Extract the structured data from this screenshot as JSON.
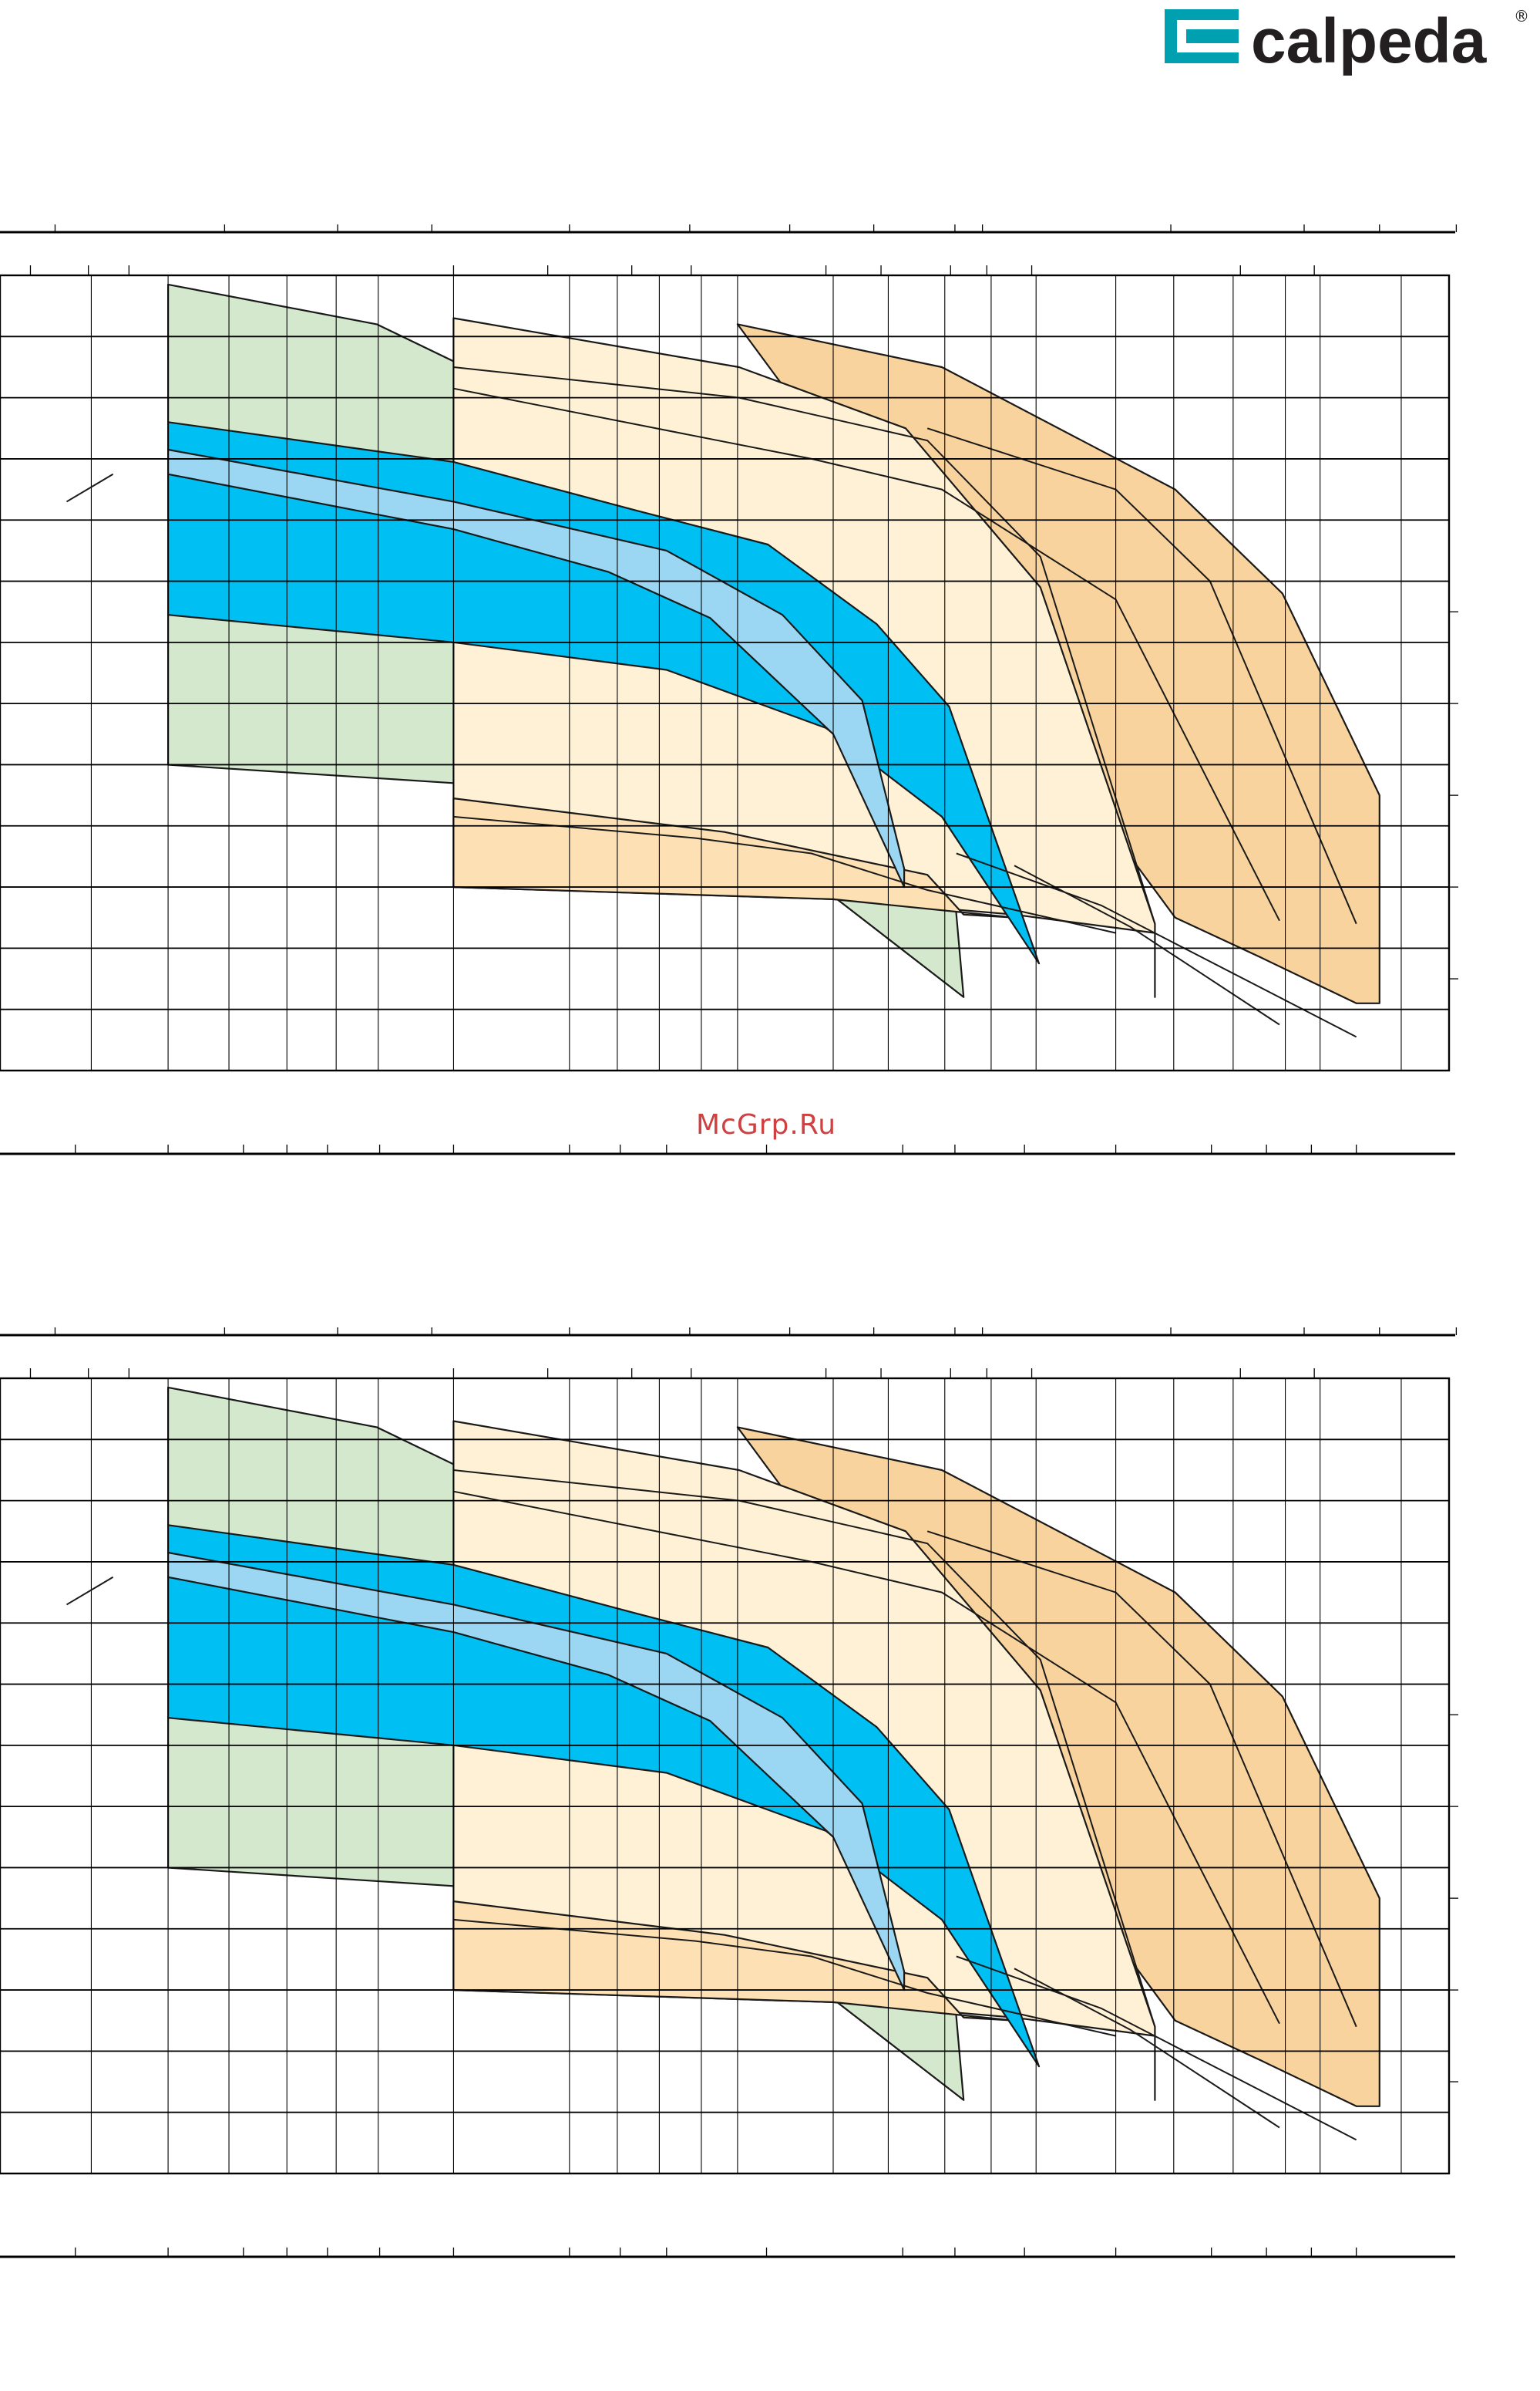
{
  "brand": {
    "name": "calpeda",
    "mark": "®",
    "color_square": "#00a0b0",
    "color_text": "#231f20"
  },
  "watermark": {
    "text": "McGrp.Ru",
    "color": "#d04040"
  },
  "colors": {
    "green": "#d3e8cc",
    "cream": "#fef1d6",
    "peach": "#fde1b5",
    "orange": "#f9d39d",
    "cyan": "#00bff2",
    "light_blue": "#9bd7f3"
  },
  "chart_data": [
    {
      "type": "area",
      "title": "",
      "xlabel": "",
      "ylabel": "",
      "x_axis": "flow rate Q (scale labels not printed)",
      "y_axis": "head H (scale labels not printed)",
      "xlim": [
        0,
        1000
      ],
      "ylim": [
        0,
        13
      ],
      "grid": true,
      "vertical_gridlines": [
        63,
        116,
        158,
        198,
        232,
        261,
        313,
        393,
        426,
        455,
        484,
        509,
        575,
        613,
        652,
        684,
        715,
        770,
        810,
        851,
        887,
        911,
        967
      ],
      "top_scale_ticks": [
        38,
        155,
        233,
        298,
        393,
        476,
        545,
        603,
        659,
        678,
        808,
        900,
        952,
        1005
      ],
      "secondary_scale_ticks": [
        21,
        61,
        89,
        313,
        378,
        436,
        477,
        570,
        608,
        656,
        681,
        712,
        856,
        907
      ],
      "right_scale_ticks": [
        7.5,
        6.0,
        4.5,
        3.0,
        1.5
      ],
      "bottom_scale_ticks": [
        52,
        116,
        168,
        198,
        226,
        262,
        313,
        393,
        428,
        460,
        529,
        623,
        659,
        707,
        770,
        836,
        874,
        905,
        936
      ],
      "series": [
        {
          "fill": "green",
          "upper": [
            [
              116,
              12.85
            ],
            [
              260,
              12.2
            ],
            [
              400,
              10.6
            ],
            [
              517,
              8.9
            ]
          ],
          "lower": [
            [
              116,
              5.0
            ],
            [
              313,
              4.7
            ],
            [
              460,
              4.0
            ],
            [
              575,
              2.85
            ],
            [
              665,
              1.2
            ]
          ],
          "right_edge": [
            [
              657,
              3.35
            ],
            [
              665,
              1.2
            ]
          ],
          "inner_upper": [
            [
              517,
              8.9
            ],
            [
              595,
              6.8
            ],
            [
              657,
              3.35
            ]
          ]
        },
        {
          "fill": "orange",
          "upper": [
            [
              509,
              12.2
            ],
            [
              650,
              11.5
            ],
            [
              811,
              9.5
            ],
            [
              885,
              7.8
            ],
            [
              952,
              4.5
            ]
          ],
          "lower": [
            [
              811,
              2.5
            ],
            [
              870,
              1.85
            ],
            [
              936,
              1.1
            ]
          ],
          "right_edge": [
            [
              952,
              4.5
            ],
            [
              952,
              1.1
            ]
          ]
        },
        {
          "fill": "cream",
          "upper": [
            [
              313,
              12.3
            ],
            [
              510,
              11.5
            ],
            [
              625,
              10.5
            ],
            [
              718,
              7.9
            ],
            [
              797,
              2.4
            ]
          ],
          "lower": [
            [
              313,
              3.0
            ],
            [
              575,
              2.8
            ],
            [
              700,
              2.55
            ],
            [
              797,
              2.25
            ]
          ],
          "right_edge": [
            [
              797,
              2.4
            ],
            [
              797,
              1.2
            ]
          ]
        },
        {
          "fill": "peach",
          "upper": [
            [
              313,
              4.45
            ],
            [
              500,
              3.9
            ],
            [
              640,
              3.2
            ]
          ],
          "lower": [
            [
              313,
              3.0
            ],
            [
              575,
              2.8
            ],
            [
              700,
              2.5
            ]
          ],
          "right_edge": [
            [
              640,
              3.2
            ],
            [
              665,
              2.55
            ]
          ]
        },
        {
          "fill": "cyan",
          "upper": [
            [
              116,
              10.6
            ],
            [
              313,
              9.95
            ],
            [
              440,
              9.15
            ],
            [
              530,
              8.6
            ],
            [
              605,
              7.3
            ],
            [
              655,
              5.95
            ],
            [
              717,
              1.75
            ]
          ],
          "lower": [
            [
              116,
              7.45
            ],
            [
              313,
              7.0
            ],
            [
              460,
              6.55
            ],
            [
              570,
              5.6
            ],
            [
              650,
              4.15
            ],
            [
              717,
              1.75
            ]
          ]
        },
        {
          "fill": "light_blue",
          "upper": [
            [
              116,
              10.15
            ],
            [
              313,
              9.3
            ],
            [
              460,
              8.5
            ],
            [
              540,
              7.45
            ],
            [
              595,
              6.05
            ],
            [
              624,
              3.3
            ]
          ],
          "lower": [
            [
              116,
              9.75
            ],
            [
              313,
              8.85
            ],
            [
              420,
              8.15
            ],
            [
              490,
              7.4
            ],
            [
              575,
              5.5
            ],
            [
              624,
              3.0
            ]
          ]
        }
      ],
      "curves": [
        [
          [
            313,
            11.5
          ],
          [
            510,
            11.0
          ],
          [
            640,
            10.3
          ],
          [
            718,
            8.4
          ],
          [
            797,
            2.4
          ]
        ],
        [
          [
            313,
            11.15
          ],
          [
            560,
            10.0
          ],
          [
            650,
            9.5
          ],
          [
            770,
            7.7
          ],
          [
            883,
            2.45
          ]
        ],
        [
          [
            640,
            10.5
          ],
          [
            770,
            9.5
          ],
          [
            835,
            8.0
          ],
          [
            936,
            2.4
          ]
        ],
        [
          [
            313,
            4.15
          ],
          [
            480,
            3.8
          ],
          [
            560,
            3.55
          ],
          [
            640,
            2.95
          ],
          [
            770,
            2.25
          ]
        ],
        [
          [
            700,
            3.35
          ],
          [
            780,
            2.35
          ],
          [
            883,
            0.75
          ]
        ],
        [
          [
            660,
            3.55
          ],
          [
            760,
            2.7
          ],
          [
            936,
            0.55
          ]
        ]
      ]
    },
    {
      "type": "area",
      "title": "",
      "xlabel": "",
      "ylabel": "",
      "x_axis": "flow rate Q (scale labels not printed)",
      "y_axis": "head H (scale labels not printed)",
      "xlim": [
        0,
        1000
      ],
      "ylim": [
        0,
        13
      ],
      "grid": true,
      "vertical_gridlines": [
        63,
        116,
        158,
        198,
        232,
        261,
        313,
        393,
        426,
        455,
        484,
        509,
        575,
        613,
        652,
        684,
        715,
        770,
        810,
        851,
        887,
        911,
        967
      ],
      "top_scale_ticks": [
        38,
        155,
        233,
        298,
        393,
        476,
        545,
        603,
        659,
        678,
        808,
        900,
        952,
        1005
      ],
      "secondary_scale_ticks": [
        21,
        61,
        89,
        313,
        378,
        436,
        477,
        570,
        608,
        656,
        681,
        712,
        856,
        907
      ],
      "right_scale_ticks": [
        7.5,
        6.0,
        4.5,
        3.0,
        1.5
      ],
      "bottom_scale_ticks": [
        52,
        116,
        168,
        198,
        226,
        262,
        313,
        393,
        428,
        460,
        529,
        623,
        659,
        707,
        770,
        836,
        874,
        905,
        936
      ],
      "series": [
        {
          "fill": "green",
          "upper": [
            [
              116,
              12.85
            ],
            [
              260,
              12.2
            ],
            [
              400,
              10.6
            ],
            [
              517,
              8.9
            ]
          ],
          "lower": [
            [
              116,
              5.0
            ],
            [
              313,
              4.7
            ],
            [
              460,
              4.0
            ],
            [
              575,
              2.85
            ],
            [
              665,
              1.2
            ]
          ],
          "right_edge": [
            [
              657,
              3.35
            ],
            [
              665,
              1.2
            ]
          ],
          "inner_upper": [
            [
              517,
              8.9
            ],
            [
              595,
              6.8
            ],
            [
              657,
              3.35
            ]
          ]
        },
        {
          "fill": "orange",
          "upper": [
            [
              509,
              12.2
            ],
            [
              650,
              11.5
            ],
            [
              811,
              9.5
            ],
            [
              885,
              7.8
            ],
            [
              952,
              4.5
            ]
          ],
          "lower": [
            [
              811,
              2.5
            ],
            [
              870,
              1.85
            ],
            [
              936,
              1.1
            ]
          ],
          "right_edge": [
            [
              952,
              4.5
            ],
            [
              952,
              1.1
            ]
          ]
        },
        {
          "fill": "cream",
          "upper": [
            [
              313,
              12.3
            ],
            [
              510,
              11.5
            ],
            [
              625,
              10.5
            ],
            [
              718,
              7.9
            ],
            [
              797,
              2.4
            ]
          ],
          "lower": [
            [
              313,
              3.0
            ],
            [
              575,
              2.8
            ],
            [
              700,
              2.55
            ],
            [
              797,
              2.25
            ]
          ],
          "right_edge": [
            [
              797,
              2.4
            ],
            [
              797,
              1.2
            ]
          ]
        },
        {
          "fill": "peach",
          "upper": [
            [
              313,
              4.45
            ],
            [
              500,
              3.9
            ],
            [
              640,
              3.2
            ]
          ],
          "lower": [
            [
              313,
              3.0
            ],
            [
              575,
              2.8
            ],
            [
              700,
              2.5
            ]
          ],
          "right_edge": [
            [
              640,
              3.2
            ],
            [
              665,
              2.55
            ]
          ]
        },
        {
          "fill": "cyan",
          "upper": [
            [
              116,
              10.6
            ],
            [
              313,
              9.95
            ],
            [
              440,
              9.15
            ],
            [
              530,
              8.6
            ],
            [
              605,
              7.3
            ],
            [
              655,
              5.95
            ],
            [
              717,
              1.75
            ]
          ],
          "lower": [
            [
              116,
              7.45
            ],
            [
              313,
              7.0
            ],
            [
              460,
              6.55
            ],
            [
              570,
              5.6
            ],
            [
              650,
              4.15
            ],
            [
              717,
              1.75
            ]
          ]
        },
        {
          "fill": "light_blue",
          "upper": [
            [
              116,
              10.15
            ],
            [
              313,
              9.3
            ],
            [
              460,
              8.5
            ],
            [
              540,
              7.45
            ],
            [
              595,
              6.05
            ],
            [
              624,
              3.3
            ]
          ],
          "lower": [
            [
              116,
              9.75
            ],
            [
              313,
              8.85
            ],
            [
              420,
              8.15
            ],
            [
              490,
              7.4
            ],
            [
              575,
              5.5
            ],
            [
              624,
              3.0
            ]
          ]
        }
      ],
      "curves": [
        [
          [
            313,
            11.5
          ],
          [
            510,
            11.0
          ],
          [
            640,
            10.3
          ],
          [
            718,
            8.4
          ],
          [
            797,
            2.4
          ]
        ],
        [
          [
            313,
            11.15
          ],
          [
            560,
            10.0
          ],
          [
            650,
            9.5
          ],
          [
            770,
            7.7
          ],
          [
            883,
            2.45
          ]
        ],
        [
          [
            640,
            10.5
          ],
          [
            770,
            9.5
          ],
          [
            835,
            8.0
          ],
          [
            936,
            2.4
          ]
        ],
        [
          [
            313,
            4.15
          ],
          [
            480,
            3.8
          ],
          [
            560,
            3.55
          ],
          [
            640,
            2.95
          ],
          [
            770,
            2.25
          ]
        ],
        [
          [
            700,
            3.35
          ],
          [
            780,
            2.35
          ],
          [
            883,
            0.75
          ]
        ],
        [
          [
            660,
            3.55
          ],
          [
            760,
            2.7
          ],
          [
            936,
            0.55
          ]
        ]
      ]
    }
  ]
}
